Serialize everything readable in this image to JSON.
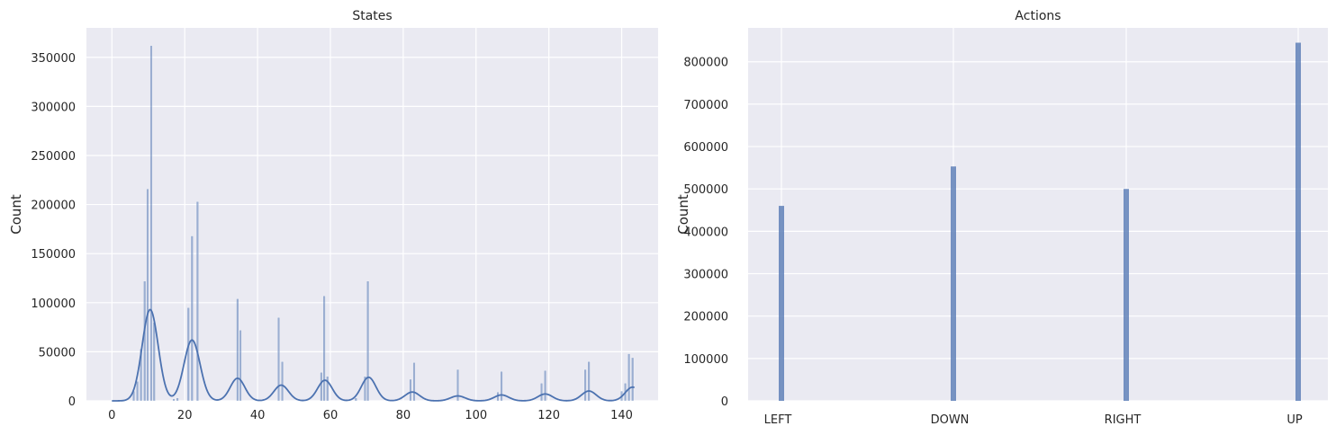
{
  "charts": [
    {
      "title": "States",
      "ylabel": "Count",
      "xlabel": "",
      "xticks": [
        "0",
        "20",
        "40",
        "60",
        "80",
        "100",
        "120",
        "140"
      ],
      "yticks": [
        "0",
        "50000",
        "100000",
        "150000",
        "200000",
        "250000",
        "300000",
        "350000"
      ]
    },
    {
      "title": "Actions",
      "ylabel": "Count",
      "xlabel": "",
      "xticks": [
        "LEFT",
        "DOWN",
        "RIGHT",
        "UP"
      ],
      "yticks": [
        "0",
        "100000",
        "200000",
        "300000",
        "400000",
        "500000",
        "600000",
        "700000",
        "800000"
      ]
    }
  ],
  "chart_data": [
    {
      "type": "histogram",
      "title": "States",
      "ylabel": "Count",
      "xlim": [
        -7,
        150
      ],
      "ylim": [
        0,
        380000
      ],
      "grid": true,
      "kde": true,
      "colors": {
        "bar": "#4c72b0",
        "background": "#eaeaf2",
        "grid": "#ffffff"
      },
      "bars": [
        {
          "x": 6,
          "value": 10000
        },
        {
          "x": 7,
          "value": 20000
        },
        {
          "x": 8,
          "value": 53000
        },
        {
          "x": 9,
          "value": 122000
        },
        {
          "x": 9.8,
          "value": 216000
        },
        {
          "x": 10.8,
          "value": 362000
        },
        {
          "x": 11.6,
          "value": 80000
        },
        {
          "x": 17,
          "value": 2000
        },
        {
          "x": 18,
          "value": 3000
        },
        {
          "x": 21,
          "value": 95000
        },
        {
          "x": 22,
          "value": 168000
        },
        {
          "x": 23.5,
          "value": 203000
        },
        {
          "x": 29,
          "value": 2000
        },
        {
          "x": 34.5,
          "value": 104000
        },
        {
          "x": 35.3,
          "value": 72000
        },
        {
          "x": 45.8,
          "value": 85000
        },
        {
          "x": 46.8,
          "value": 40000
        },
        {
          "x": 57.5,
          "value": 29000
        },
        {
          "x": 58.3,
          "value": 107000
        },
        {
          "x": 59.2,
          "value": 25000
        },
        {
          "x": 67,
          "value": 3000
        },
        {
          "x": 69.5,
          "value": 25000
        },
        {
          "x": 70.3,
          "value": 122000
        },
        {
          "x": 82,
          "value": 22000
        },
        {
          "x": 83,
          "value": 39000
        },
        {
          "x": 95,
          "value": 32000
        },
        {
          "x": 106,
          "value": 9000
        },
        {
          "x": 107,
          "value": 30000
        },
        {
          "x": 118,
          "value": 18000
        },
        {
          "x": 119,
          "value": 31000
        },
        {
          "x": 130,
          "value": 32000
        },
        {
          "x": 131,
          "value": 40000
        },
        {
          "x": 140,
          "value": 10000
        },
        {
          "x": 141,
          "value": 18000
        },
        {
          "x": 142,
          "value": 48000
        },
        {
          "x": 143,
          "value": 44000
        }
      ],
      "kde_peaks": [
        {
          "x": 10.5,
          "height": 93000,
          "sigma": 2.2
        },
        {
          "x": 22,
          "height": 62000,
          "sigma": 2.2
        },
        {
          "x": 34.5,
          "height": 23000,
          "sigma": 2.0
        },
        {
          "x": 46.5,
          "height": 16000,
          "sigma": 2.0
        },
        {
          "x": 58.5,
          "height": 21000,
          "sigma": 2.0
        },
        {
          "x": 70.5,
          "height": 24000,
          "sigma": 2.0
        },
        {
          "x": 82.5,
          "height": 9000,
          "sigma": 2.0
        },
        {
          "x": 95,
          "height": 5000,
          "sigma": 2.0
        },
        {
          "x": 107,
          "height": 6000,
          "sigma": 2.0
        },
        {
          "x": 119,
          "height": 7000,
          "sigma": 2.0
        },
        {
          "x": 131,
          "height": 10000,
          "sigma": 2.0
        },
        {
          "x": 143,
          "height": 14000,
          "sigma": 2.0
        }
      ]
    },
    {
      "type": "histogram",
      "title": "Actions",
      "ylabel": "Count",
      "categories": [
        "LEFT",
        "DOWN",
        "RIGHT",
        "UP"
      ],
      "values": [
        460000,
        553000,
        500000,
        845000
      ],
      "ylim": [
        0,
        880000
      ],
      "grid": true,
      "colors": {
        "bar": "#4c72b0",
        "background": "#eaeaf2",
        "grid": "#ffffff"
      }
    }
  ]
}
